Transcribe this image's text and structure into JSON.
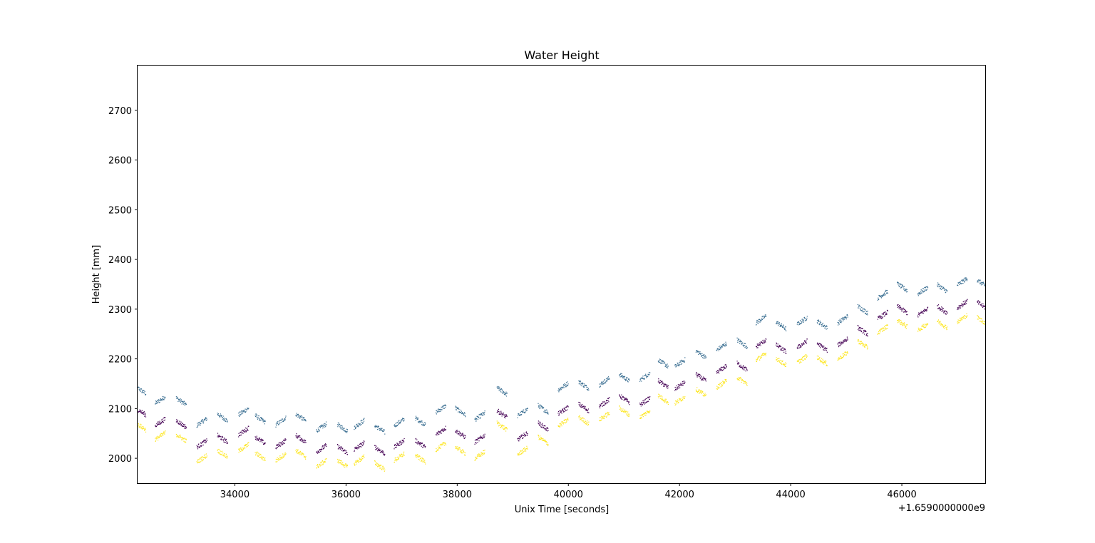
{
  "chart_data": {
    "type": "scatter",
    "title": "Water Height",
    "xlabel": "Unix Time [seconds]",
    "ylabel": "Height [mm]",
    "x_offset_label": "+1.6590000000e9",
    "xlim": [
      32250,
      47500
    ],
    "ylim": [
      1950,
      2790
    ],
    "xticks": [
      34000,
      36000,
      38000,
      40000,
      42000,
      44000,
      46000
    ],
    "yticks": [
      2000,
      2100,
      2200,
      2300,
      2400,
      2500,
      2600,
      2700
    ],
    "grid": false,
    "legend": "none",
    "colors": [
      "#3b6f92",
      "#440154",
      "#fde725"
    ],
    "burst_centers": [
      32300,
      32650,
      33030,
      33400,
      33770,
      34150,
      34450,
      34820,
      35180,
      35550,
      35930,
      36230,
      36600,
      36950,
      37330,
      37700,
      38050,
      38400,
      38800,
      39170,
      39540,
      39900,
      40270,
      40640,
      41000,
      41370,
      41700,
      42000,
      42380,
      42750,
      43120,
      43460,
      43820,
      44200,
      44560,
      44930,
      45290,
      45650,
      46000,
      46370,
      46720,
      47080,
      47440
    ],
    "series": [
      {
        "name": "",
        "color": "#3b6f92",
        "values": [
          2138,
          2118,
          2115,
          2074,
          2083,
          2095,
          2080,
          2075,
          2083,
          2063,
          2062,
          2070,
          2060,
          2073,
          2075,
          2100,
          2095,
          2085,
          2136,
          2093,
          2100,
          2145,
          2148,
          2155,
          2163,
          2165,
          2192,
          2192,
          2210,
          2225,
          2232,
          2280,
          2268,
          2277,
          2270,
          2280,
          2300,
          2330,
          2345,
          2338,
          2343,
          2356,
          2352
        ]
      },
      {
        "name": "",
        "color": "#440154",
        "values": [
          2095,
          2073,
          2070,
          2030,
          2040,
          2055,
          2037,
          2030,
          2040,
          2020,
          2018,
          2025,
          2017,
          2030,
          2030,
          2055,
          2050,
          2040,
          2090,
          2045,
          2065,
          2097,
          2103,
          2112,
          2120,
          2115,
          2150,
          2147,
          2163,
          2180,
          2185,
          2232,
          2222,
          2230,
          2225,
          2235,
          2257,
          2288,
          2300,
          2295,
          2300,
          2310,
          2308
        ]
      },
      {
        "name": "",
        "color": "#fde725",
        "values": [
          2065,
          2045,
          2042,
          2000,
          2010,
          2022,
          2005,
          2003,
          2010,
          1990,
          1990,
          1997,
          1985,
          2003,
          2000,
          2025,
          2017,
          2007,
          2065,
          2015,
          2037,
          2072,
          2077,
          2085,
          2095,
          2090,
          2120,
          2118,
          2133,
          2150,
          2157,
          2205,
          2195,
          2200,
          2197,
          2207,
          2230,
          2260,
          2272,
          2265,
          2270,
          2282,
          2277
        ]
      }
    ]
  }
}
